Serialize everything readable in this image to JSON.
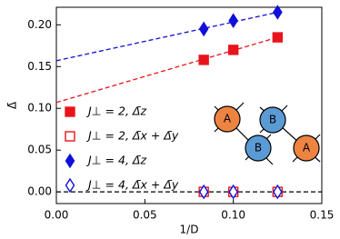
{
  "chart_data": {
    "type": "scatter",
    "x_label": "1/D",
    "y_label": "Δ̄",
    "x": [
      0.0833,
      0.1,
      0.125
    ],
    "series": [
      {
        "name": "J⊥ = 2, Δ̄z",
        "color": "#e8141c",
        "marker": "square",
        "filled": true,
        "values": [
          0.158,
          0.17,
          0.185
        ]
      },
      {
        "name": "J⊥ = 2, Δ̄x + Δ̄y",
        "color": "#e8141c",
        "marker": "square",
        "filled": false,
        "values": [
          0,
          0,
          0
        ]
      },
      {
        "name": "J⊥ = 4, Δ̄z",
        "color": "#1010d8",
        "marker": "diamond",
        "filled": true,
        "values": [
          0.195,
          0.205,
          0.215
        ]
      },
      {
        "name": "J⊥ = 4, Δ̄x + Δ̄y",
        "color": "#1010d8",
        "marker": "diamond",
        "filled": false,
        "values": [
          0,
          0,
          0
        ]
      }
    ],
    "fit_lines": [
      {
        "color": "#e8141c",
        "x": [
          0,
          0.125
        ],
        "values": [
          0.107,
          0.185
        ]
      },
      {
        "color": "#1010d8",
        "x": [
          0,
          0.125
        ],
        "values": [
          0.157,
          0.215
        ]
      }
    ],
    "reference_line": {
      "color": "#000000",
      "value": 0
    },
    "xlim": [
      0,
      0.15
    ],
    "ylim": [
      -0.014,
      0.221
    ],
    "xticks": [
      {
        "value": 0,
        "label": "0.00"
      },
      {
        "value": 0.05,
        "label": "0.05"
      },
      {
        "value": 0.1,
        "label": "0.10"
      },
      {
        "value": 0.15,
        "label": "0.15"
      }
    ],
    "yticks": [
      {
        "value": 0,
        "label": "0.00"
      },
      {
        "value": 0.05,
        "label": "0.05"
      },
      {
        "value": 0.1,
        "label": "0.10"
      },
      {
        "value": 0.15,
        "label": "0.15"
      },
      {
        "value": 0.2,
        "label": "0.20"
      }
    ],
    "legend": "left",
    "inset": {
      "labels": [
        "A",
        "B",
        "B",
        "A"
      ]
    }
  }
}
